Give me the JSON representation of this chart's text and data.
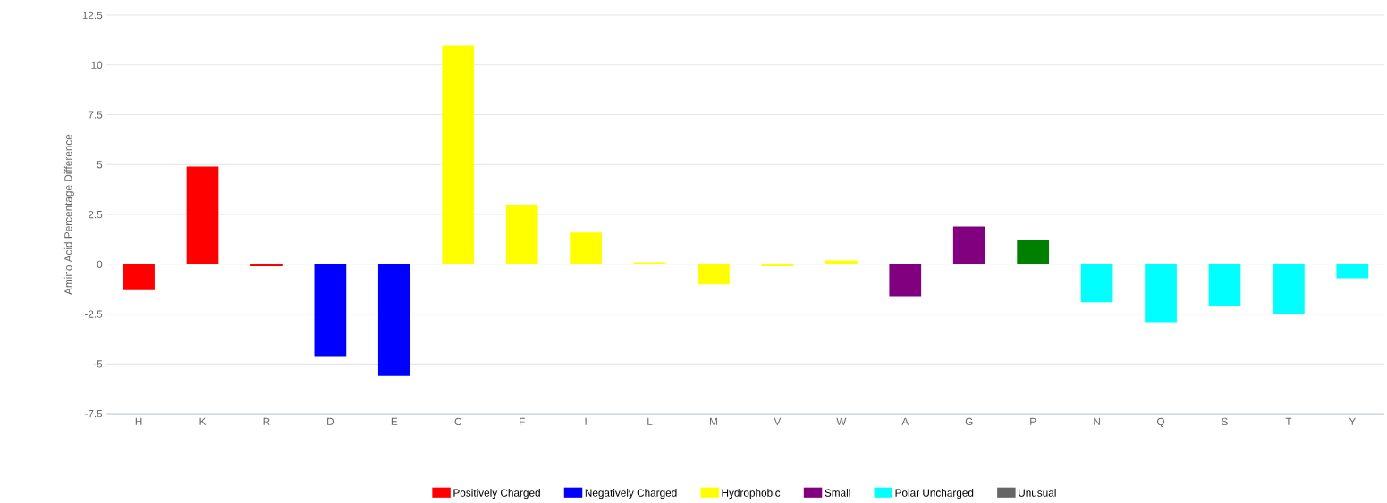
{
  "chart_data": {
    "type": "bar",
    "ylabel": "Amino Acid Percentage Difference",
    "categories": [
      "H",
      "K",
      "R",
      "D",
      "E",
      "C",
      "F",
      "I",
      "L",
      "M",
      "V",
      "W",
      "A",
      "G",
      "P",
      "N",
      "Q",
      "S",
      "T",
      "Y"
    ],
    "series": [
      {
        "name": "Positively Charged",
        "color": "#ff0000",
        "values": [
          -1.3,
          4.9,
          -0.1,
          null,
          null,
          null,
          null,
          null,
          null,
          null,
          null,
          null,
          null,
          null,
          null,
          null,
          null,
          null,
          null,
          null
        ]
      },
      {
        "name": "Negatively Charged",
        "color": "#0000ff",
        "values": [
          null,
          null,
          null,
          -4.65,
          -5.6,
          null,
          null,
          null,
          null,
          null,
          null,
          null,
          null,
          null,
          null,
          null,
          null,
          null,
          null,
          null
        ]
      },
      {
        "name": "Hydrophobic",
        "color": "#ffff00",
        "values": [
          null,
          null,
          null,
          null,
          null,
          11.0,
          3.0,
          1.6,
          0.1,
          -1.0,
          -0.1,
          0.2,
          null,
          null,
          null,
          null,
          null,
          null,
          null,
          null
        ]
      },
      {
        "name": "Small",
        "color": "#800080",
        "values": [
          null,
          null,
          null,
          null,
          null,
          null,
          null,
          null,
          null,
          null,
          null,
          null,
          -1.6,
          1.9,
          null,
          null,
          null,
          null,
          null,
          null
        ]
      },
      {
        "name": "Polar Uncharged",
        "color": "#00ffff",
        "values": [
          null,
          null,
          null,
          null,
          null,
          null,
          null,
          null,
          null,
          null,
          null,
          null,
          null,
          null,
          null,
          -1.9,
          -2.9,
          -2.1,
          -2.5,
          -0.7
        ]
      },
      {
        "color": "#008000",
        "values": [
          null,
          null,
          null,
          null,
          null,
          null,
          null,
          null,
          null,
          null,
          null,
          null,
          null,
          null,
          1.2,
          null,
          null,
          null,
          null,
          null
        ]
      },
      {
        "name": "Unusual",
        "color": "#666666",
        "values": [
          null,
          null,
          null,
          null,
          null,
          null,
          null,
          null,
          null,
          null,
          null,
          null,
          null,
          null,
          null,
          null,
          null,
          null,
          null,
          null
        ]
      }
    ],
    "ylim": [
      -7.5,
      12.5
    ],
    "yticks": [
      -7.5,
      -5,
      -2.5,
      0,
      2.5,
      5,
      7.5,
      10,
      12.5
    ],
    "grid": "y",
    "legend": "bottom"
  }
}
